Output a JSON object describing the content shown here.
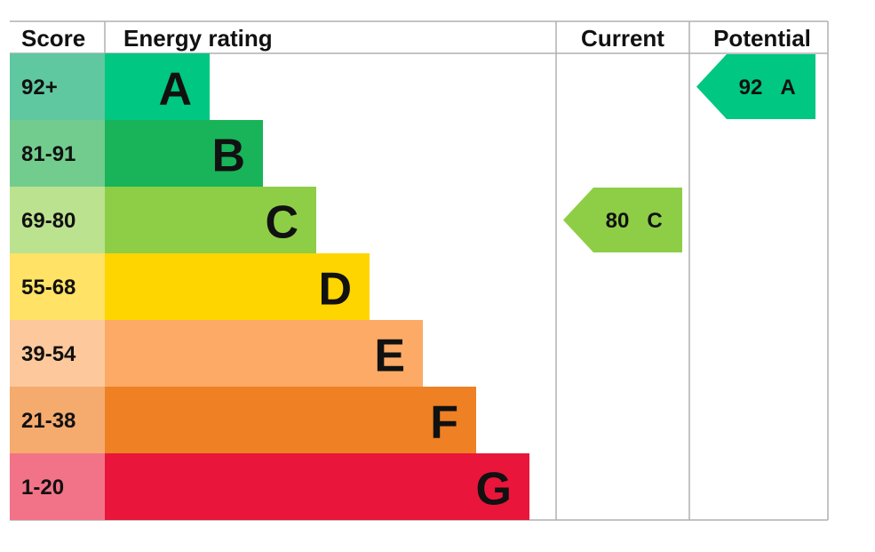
{
  "chart_data": {
    "type": "epc",
    "headers": {
      "score": "Score",
      "rating": "Energy rating",
      "current": "Current",
      "potential": "Potential"
    },
    "bands": [
      {
        "letter": "A",
        "range": "92+",
        "color": "#00c781",
        "score_color": "#5fc8a0"
      },
      {
        "letter": "B",
        "range": "81-91",
        "color": "#19b459",
        "score_color": "#72cc8e"
      },
      {
        "letter": "C",
        "range": "69-80",
        "color": "#8dce46",
        "score_color": "#bbe28f"
      },
      {
        "letter": "D",
        "range": "55-68",
        "color": "#ffd500",
        "score_color": "#ffe266"
      },
      {
        "letter": "E",
        "range": "39-54",
        "color": "#fcaa65",
        "score_color": "#fdc99c"
      },
      {
        "letter": "F",
        "range": "21-38",
        "color": "#ef8023",
        "score_color": "#f5aa6e"
      },
      {
        "letter": "G",
        "range": "1-20",
        "color": "#e9153b",
        "score_color": "#f27388"
      }
    ],
    "current": {
      "value": 80,
      "band": "C"
    },
    "potential": {
      "value": 92,
      "band": "A"
    }
  }
}
